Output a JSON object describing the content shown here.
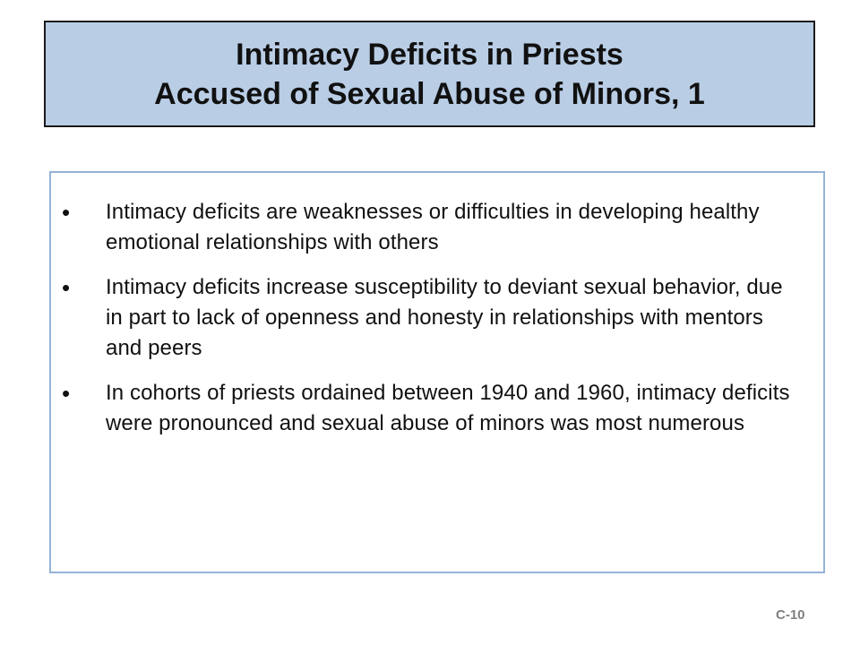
{
  "slide": {
    "title_line_1": "Intimacy Deficits in Priests",
    "title_line_2": "Accused of Sexual Abuse of Minors, 1",
    "bullet_symbol": "•",
    "bullets": [
      {
        "text": "Intimacy deficits are weaknesses or difficulties in developing healthy emotional relationships with others"
      },
      {
        "text": "Intimacy deficits increase susceptibility to deviant sexual behavior, due in part to lack of openness and honesty in relationships with mentors and peers"
      },
      {
        "text": "In cohorts of priests ordained between 1940 and 1960, intimacy deficits were pronounced and sexual abuse of minors was most numerous"
      }
    ],
    "slide_number": "C-10"
  },
  "colors": {
    "title_background": "#b9cde5",
    "title_border": "#1a1a1a",
    "content_border": "#95b3d7",
    "slide_number": "#7f7f7f"
  }
}
